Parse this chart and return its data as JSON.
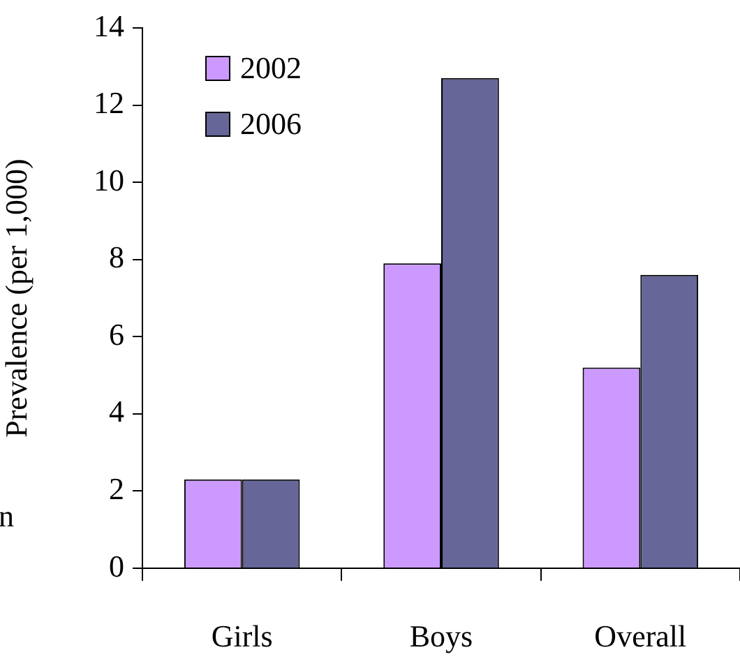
{
  "chart_data": {
    "type": "bar",
    "ylabel": "Prevalence (per 1,000)",
    "categories": [
      "Girls",
      "Boys",
      "Overall"
    ],
    "series": [
      {
        "name": "2002",
        "color": "#cc99ff",
        "values": [
          2.3,
          7.9,
          5.2
        ]
      },
      {
        "name": "2006",
        "color": "#666699",
        "values": [
          2.3,
          12.7,
          7.6
        ]
      }
    ],
    "ylim": [
      0,
      14
    ],
    "yticks": [
      0,
      2,
      4,
      6,
      8,
      10,
      12,
      14
    ],
    "grid": false,
    "legend": "top left",
    "annotations": [
      "n"
    ]
  }
}
